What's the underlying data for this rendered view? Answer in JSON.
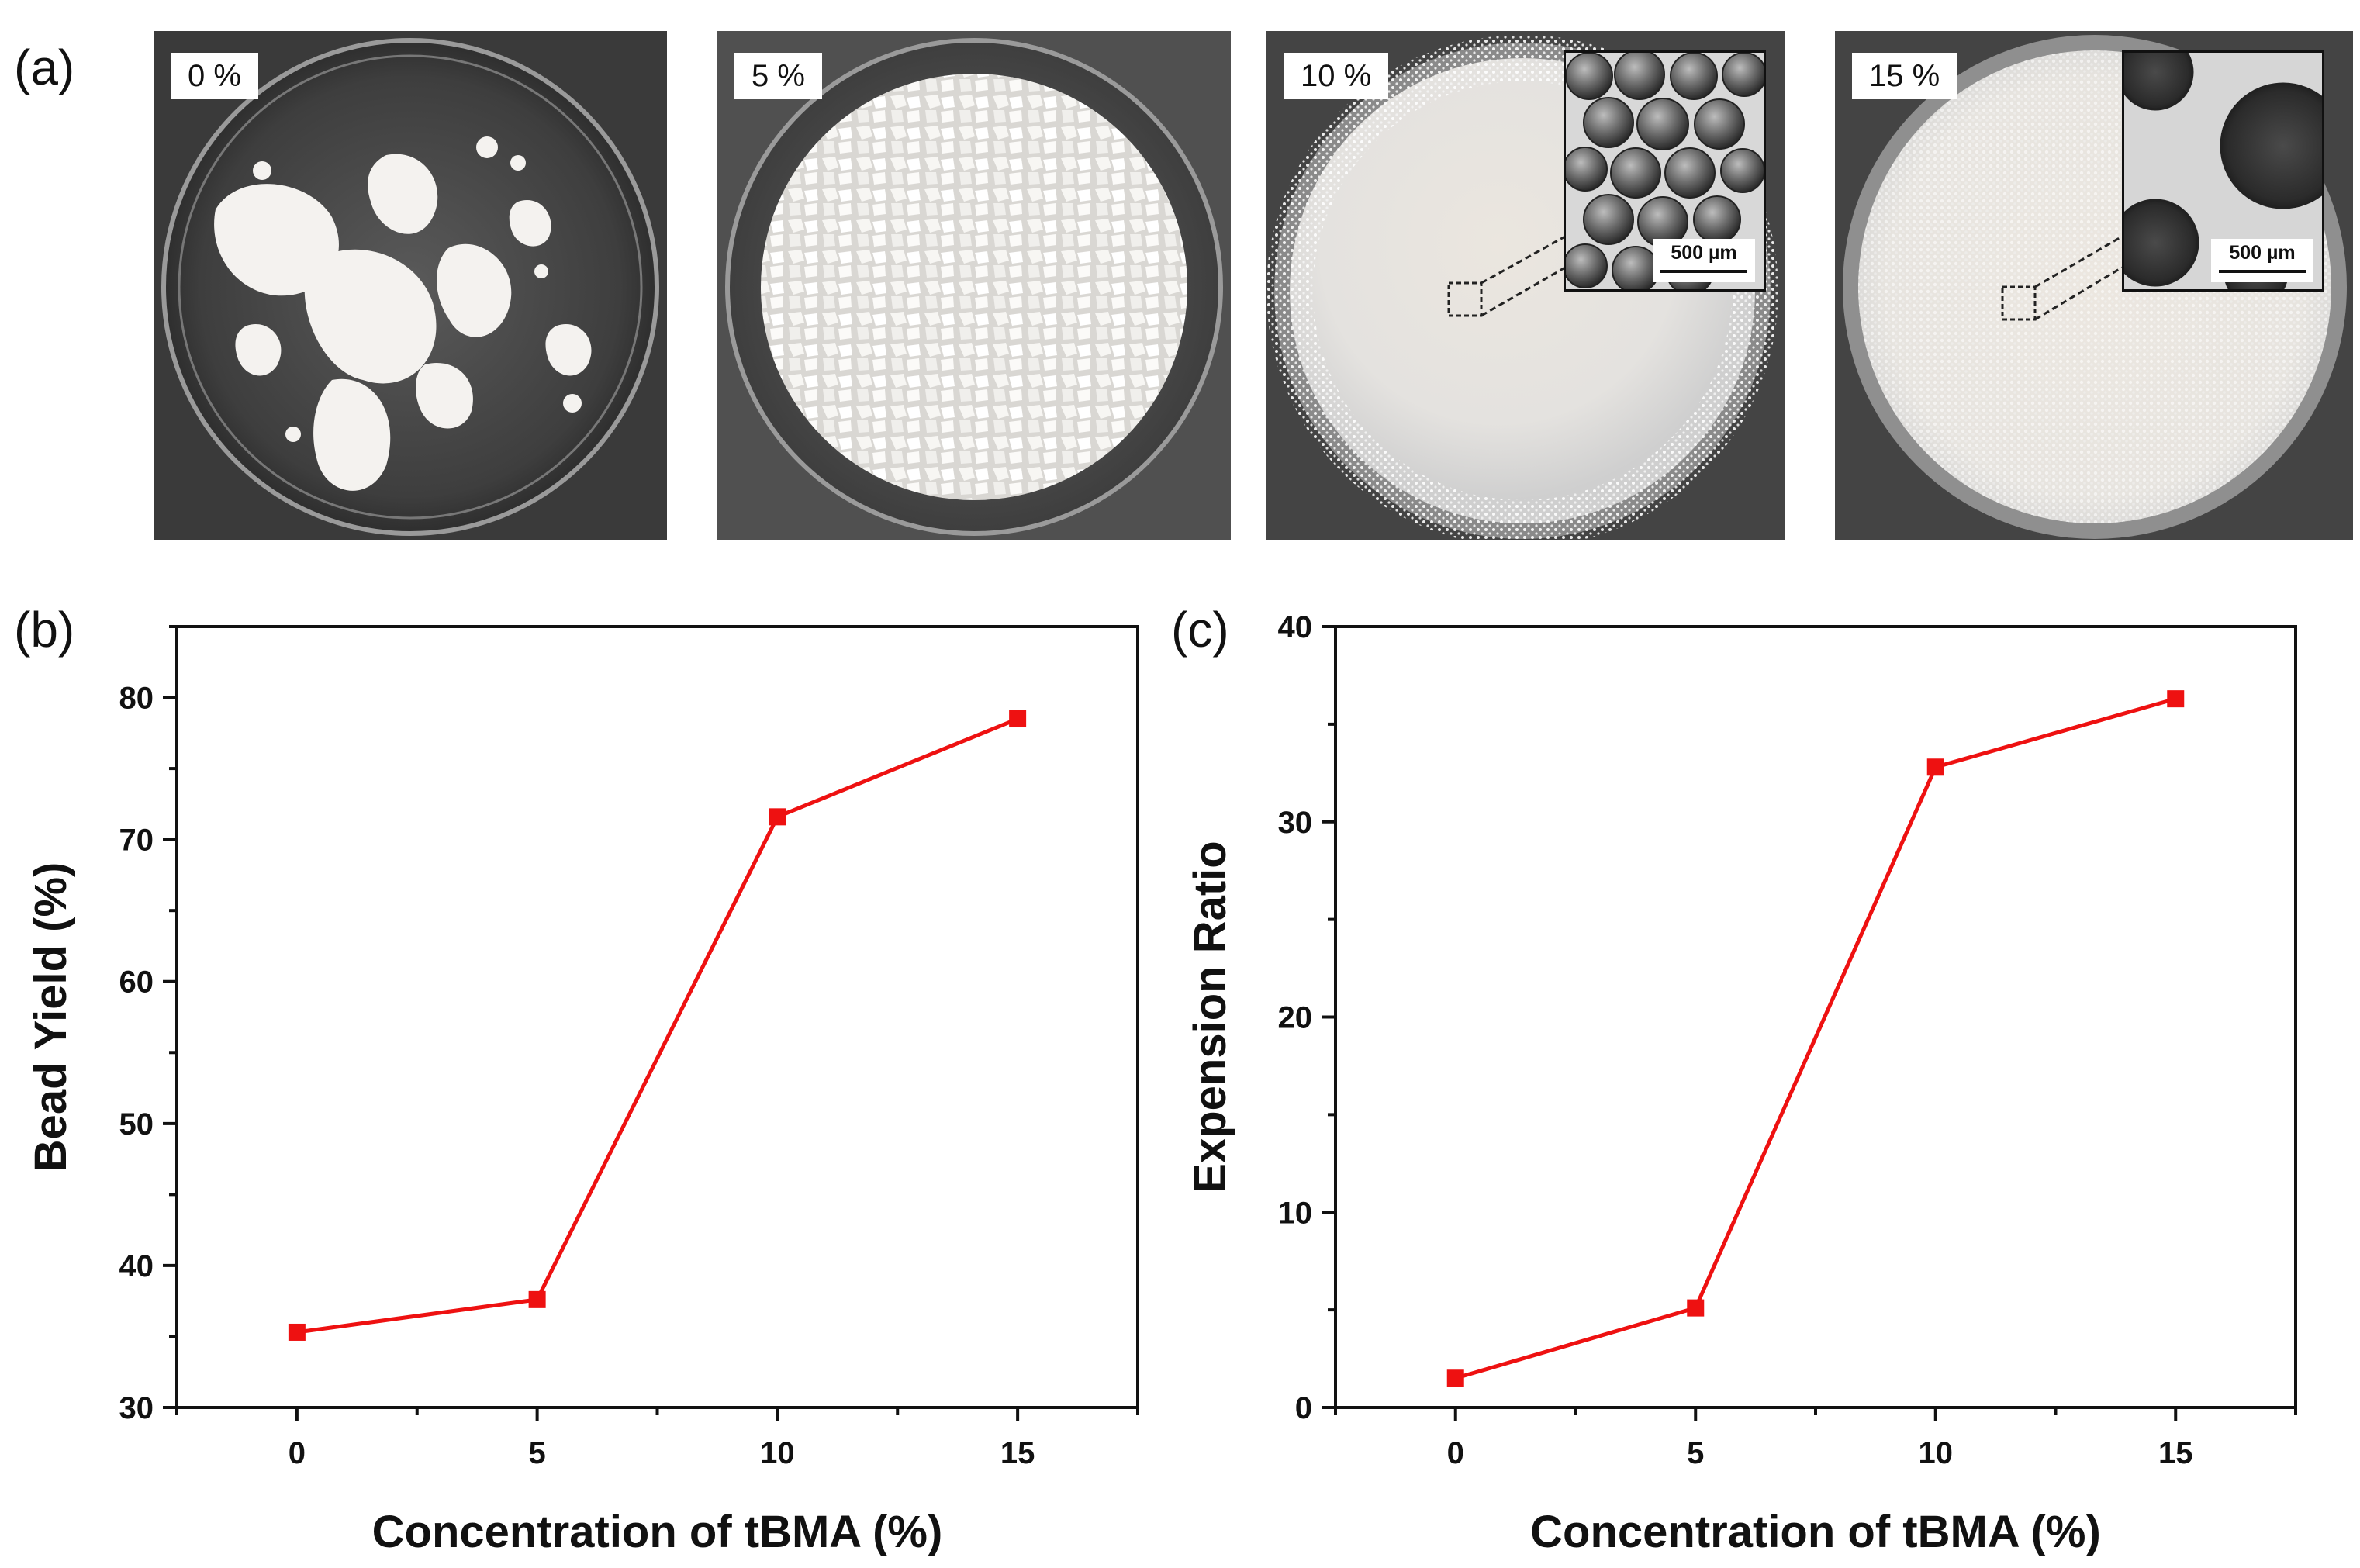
{
  "figure": {
    "panel_a": {
      "letter": "(a)",
      "photos": [
        {
          "label": "0 %",
          "style": "chunks"
        },
        {
          "label": "5 %",
          "style": "granules"
        },
        {
          "label": "10 %",
          "style": "beads",
          "inset_scale": "500 µm"
        },
        {
          "label": "15 %",
          "style": "beads-dense",
          "inset_scale": "500 µm"
        }
      ]
    },
    "panel_b": {
      "letter": "(b)"
    },
    "panel_c": {
      "letter": "(c)"
    }
  },
  "chart_data": [
    {
      "type": "line",
      "xlabel": "Concentration of tBMA (%)",
      "ylabel": "Bead Yield (%)",
      "x": [
        0,
        5,
        10,
        15
      ],
      "y": [
        35.3,
        37.6,
        71.6,
        78.5
      ],
      "xlim": [
        -2.5,
        17.5
      ],
      "ylim": [
        30,
        85
      ],
      "xticks": [
        0,
        5,
        10,
        15
      ],
      "yticks": [
        30,
        40,
        50,
        60,
        70,
        80
      ],
      "color": "#ee1111"
    },
    {
      "type": "line",
      "xlabel": "Concentration of tBMA (%)",
      "ylabel": "Expension Ratio",
      "x": [
        0,
        5,
        10,
        15
      ],
      "y": [
        1.5,
        5.1,
        32.8,
        36.3
      ],
      "xlim": [
        -2.5,
        17.5
      ],
      "ylim": [
        0,
        40
      ],
      "xticks": [
        0,
        5,
        10,
        15
      ],
      "yticks": [
        0,
        10,
        20,
        30,
        40
      ],
      "color": "#ee1111"
    }
  ]
}
